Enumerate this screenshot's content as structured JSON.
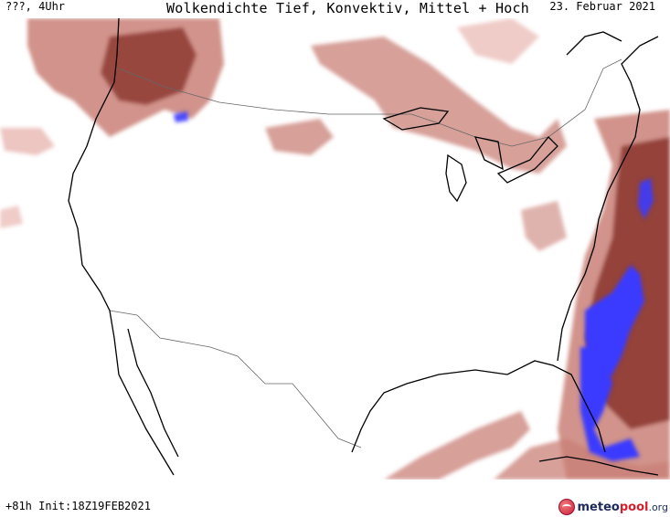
{
  "header": {
    "run_label": "???, 4Uhr",
    "title": "Wolkendichte  Tief, Konvektiv, Mittel + Hoch",
    "date": "23. Februar 2021"
  },
  "footer": {
    "forecast_info": "+81h Init:18Z19FEB2021"
  },
  "logo": {
    "part1": "meteo",
    "part2": "pool",
    "part3": ".org"
  },
  "colors": {
    "cloud_light": "#e8b7b1",
    "cloud_mid": "#c98077",
    "cloud_dark": "#8e3b33",
    "cloud_max": "#3a3aff",
    "coastline": "#000000",
    "borders": "#555555"
  }
}
